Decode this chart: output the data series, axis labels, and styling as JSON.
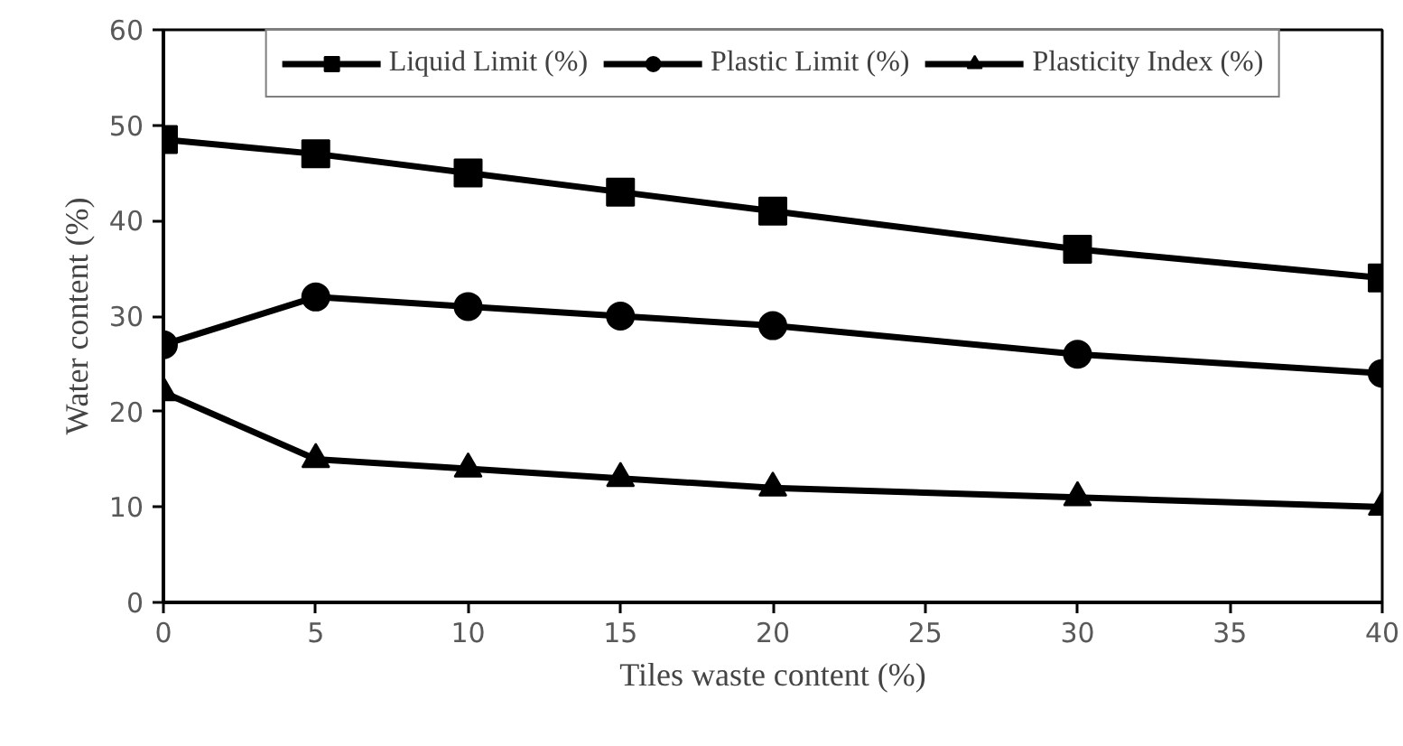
{
  "chart_data": {
    "type": "line",
    "xlabel": "Tiles waste content (%)",
    "ylabel": "Water content (%)",
    "x": [
      0,
      5,
      10,
      15,
      20,
      30,
      40
    ],
    "series": [
      {
        "name": "Liquid Limit (%)",
        "color": "#000000",
        "marker": "square",
        "values": [
          48.5,
          47,
          45,
          43,
          41,
          37,
          34
        ]
      },
      {
        "name": "Plastic Limit (%)",
        "color": "#000000",
        "marker": "circle",
        "values": [
          27,
          32,
          31,
          30,
          29,
          26,
          24
        ]
      },
      {
        "name": "Plasticity Index (%)",
        "color": "#000000",
        "marker": "triangle",
        "values": [
          22,
          15,
          14,
          13,
          12,
          11,
          10
        ]
      }
    ],
    "xlim": [
      0,
      40
    ],
    "xticks": [
      0,
      5,
      10,
      15,
      20,
      25,
      30,
      35,
      40
    ],
    "ylim": [
      0,
      60
    ],
    "yticks": [
      0,
      10,
      20,
      30,
      40,
      50,
      60
    ],
    "grid": false,
    "legend": "top",
    "line_style": "solid"
  }
}
